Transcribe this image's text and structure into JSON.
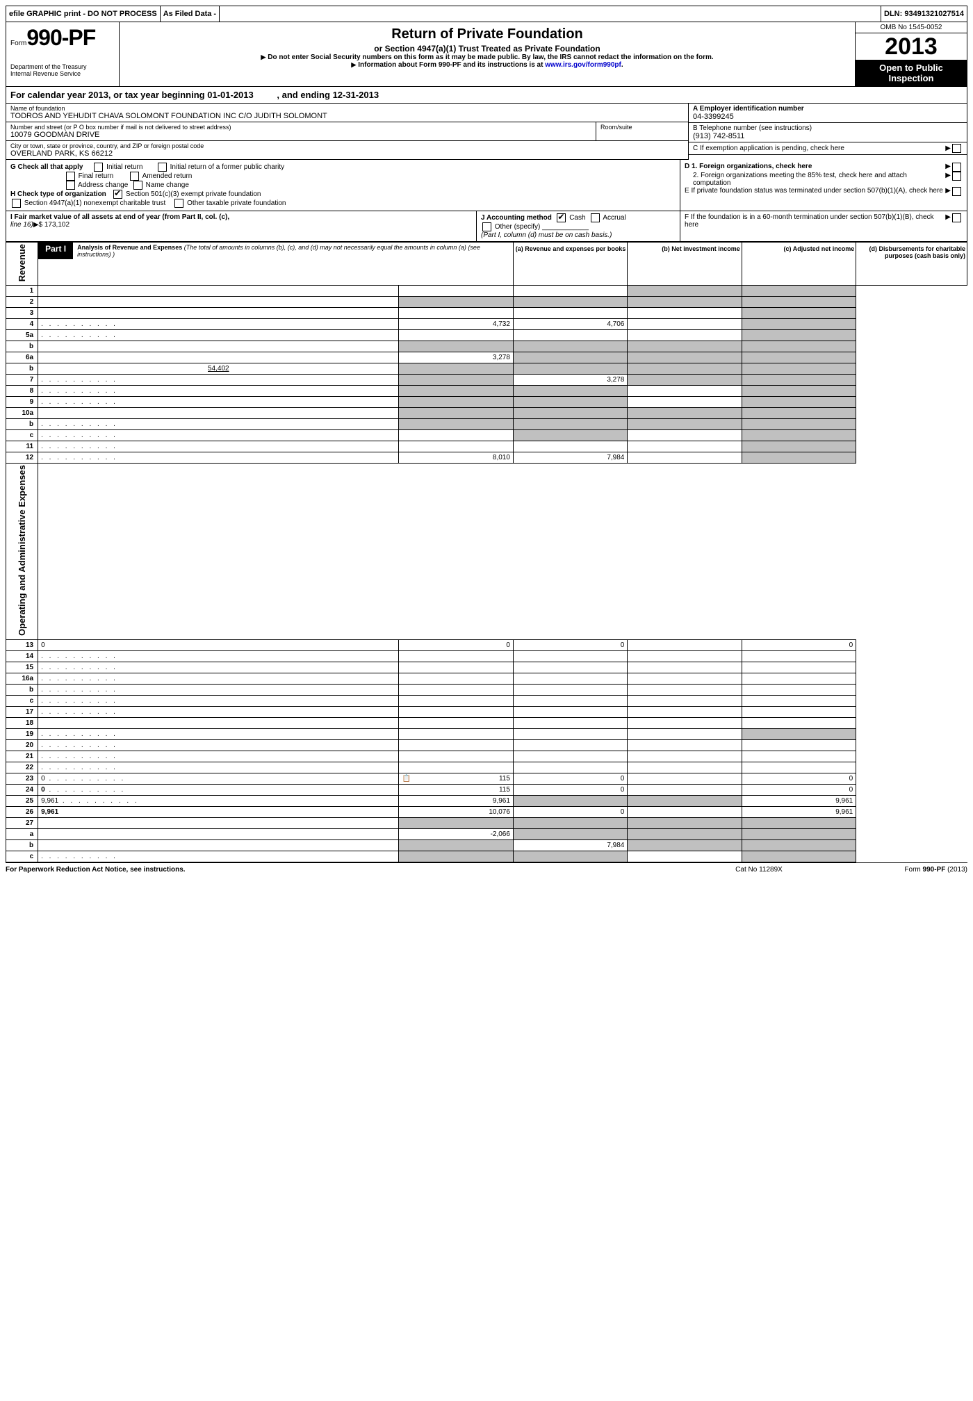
{
  "topbar": {
    "efile": "efile GRAPHIC print - DO NOT PROCESS",
    "asfiled": "As Filed Data -",
    "dln_label": "DLN:",
    "dln": "93491321027514"
  },
  "header": {
    "form_prefix": "Form",
    "form_num": "990-PF",
    "dept1": "Department of the Treasury",
    "dept2": "Internal Revenue Service",
    "title": "Return of Private Foundation",
    "subtitle": "or Section 4947(a)(1) Trust Treated as Private Foundation",
    "note1": "Do not enter Social Security numbers on this form as it may be made public. By law, the IRS cannot redact the information on the form.",
    "note2": "Information about Form 990-PF and its instructions is at",
    "link": "www.irs.gov/form990pf",
    "omb": "OMB No 1545-0052",
    "year": "2013",
    "open": "Open to Public Inspection"
  },
  "calendar": {
    "text": "For calendar year 2013, or tax year beginning",
    "begin": "01-01-2013",
    "mid": ", and ending",
    "end": "12-31-2013"
  },
  "entity": {
    "name_label": "Name of foundation",
    "name": "TODROS AND YEHUDIT CHAVA SOLOMONT FOUNDATION INC C/O JUDITH SOLOMONT",
    "addr_label": "Number and street (or P O  box number if mail is not delivered to street address)",
    "room_label": "Room/suite",
    "addr": "10079 GOODMAN DRIVE",
    "city_label": "City or town, state or province, country, and ZIP or foreign postal code",
    "city": "OVERLAND PARK, KS  66212",
    "a_label": "A Employer identification number",
    "ein": "04-3399245",
    "b_label": "B Telephone number (see instructions)",
    "phone": "(913) 742-8511",
    "c_label": "C  If exemption application is pending, check here"
  },
  "checks": {
    "g": "G Check all that apply",
    "g1": "Initial return",
    "g2": "Initial return of a former public charity",
    "g3": "Final return",
    "g4": "Amended return",
    "g5": "Address change",
    "g6": "Name change",
    "h": "H Check type of organization",
    "h1": "Section 501(c)(3) exempt private foundation",
    "h2": "Section 4947(a)(1) nonexempt charitable trust",
    "h3": "Other taxable private foundation",
    "d1": "D 1. Foreign organizations, check here",
    "d2": "2. Foreign organizations meeting the 85% test, check here and attach computation",
    "e": "E  If private foundation status was terminated under section 507(b)(1)(A), check here",
    "f": "F  If the foundation is in a 60-month termination under section 507(b)(1)(B), check here",
    "i": "I Fair market value of all assets at end of year (from Part II, col. (c),",
    "i_line": "line 16)",
    "i_val": "$  173,102",
    "j": "J Accounting method",
    "j1": "Cash",
    "j2": "Accrual",
    "j3": "Other (specify)",
    "j_note": "(Part I, column (d) must be on cash basis.)"
  },
  "part1": {
    "label": "Part I",
    "title": "Analysis of Revenue and Expenses",
    "title_note": "(The total of amounts in columns (b), (c), and (d) may not necessarily equal the amounts in column (a) (see instructions) )",
    "col_a": "(a) Revenue and expenses per books",
    "col_b": "(b) Net investment income",
    "col_c": "(c) Adjusted net income",
    "col_d": "(d) Disbursements for charitable purposes (cash basis only)"
  },
  "side": {
    "revenue": "Revenue",
    "expenses": "Operating and Administrative Expenses"
  },
  "rows": [
    {
      "n": "1",
      "d": "",
      "a": "",
      "b": "",
      "c": "",
      "grey_c": true,
      "grey_d": true
    },
    {
      "n": "2",
      "d": "",
      "a": "",
      "b": "",
      "c": "",
      "grey_a": true,
      "grey_b": true,
      "grey_c": true,
      "grey_d": true
    },
    {
      "n": "3",
      "d": "",
      "a": "",
      "b": "",
      "c": "",
      "grey_d": true
    },
    {
      "n": "4",
      "d": "",
      "a": "4,732",
      "b": "4,706",
      "c": "",
      "grey_d": true,
      "dots": true
    },
    {
      "n": "5a",
      "d": "",
      "a": "",
      "b": "",
      "c": "",
      "grey_d": true,
      "dots": true
    },
    {
      "n": "b",
      "d": "",
      "a": "",
      "b": "",
      "c": "",
      "grey_a": true,
      "grey_b": true,
      "grey_c": true,
      "grey_d": true
    },
    {
      "n": "6a",
      "d": "",
      "a": "3,278",
      "b": "",
      "c": "",
      "grey_b": true,
      "grey_c": true,
      "grey_d": true
    },
    {
      "n": "b",
      "d": "",
      "sub": "54,402",
      "a": "",
      "b": "",
      "c": "",
      "grey_a": true,
      "grey_b": true,
      "grey_c": true,
      "grey_d": true
    },
    {
      "n": "7",
      "d": "",
      "a": "",
      "b": "3,278",
      "c": "",
      "grey_a": true,
      "grey_c": true,
      "grey_d": true,
      "dots": true
    },
    {
      "n": "8",
      "d": "",
      "a": "",
      "b": "",
      "c": "",
      "grey_a": true,
      "grey_b": true,
      "grey_d": true,
      "dots": true
    },
    {
      "n": "9",
      "d": "",
      "a": "",
      "b": "",
      "c": "",
      "grey_a": true,
      "grey_b": true,
      "grey_d": true,
      "dots": true
    },
    {
      "n": "10a",
      "d": "",
      "a": "",
      "b": "",
      "c": "",
      "grey_a": true,
      "grey_b": true,
      "grey_c": true,
      "grey_d": true
    },
    {
      "n": "b",
      "d": "",
      "a": "",
      "b": "",
      "c": "",
      "grey_a": true,
      "grey_b": true,
      "grey_c": true,
      "grey_d": true,
      "dots": true
    },
    {
      "n": "c",
      "d": "",
      "a": "",
      "b": "",
      "c": "",
      "grey_b": true,
      "grey_d": true,
      "dots": true
    },
    {
      "n": "11",
      "d": "",
      "a": "",
      "b": "",
      "c": "",
      "grey_d": true,
      "dots": true
    },
    {
      "n": "12",
      "d": "",
      "a": "8,010",
      "b": "7,984",
      "c": "",
      "grey_d": true,
      "bold": true,
      "dots": true
    }
  ],
  "exp_rows": [
    {
      "n": "13",
      "d": "0",
      "a": "0",
      "b": "0",
      "c": ""
    },
    {
      "n": "14",
      "d": "",
      "a": "",
      "b": "",
      "c": "",
      "dots": true
    },
    {
      "n": "15",
      "d": "",
      "a": "",
      "b": "",
      "c": "",
      "dots": true
    },
    {
      "n": "16a",
      "d": "",
      "a": "",
      "b": "",
      "c": "",
      "dots": true
    },
    {
      "n": "b",
      "d": "",
      "a": "",
      "b": "",
      "c": "",
      "dots": true
    },
    {
      "n": "c",
      "d": "",
      "a": "",
      "b": "",
      "c": "",
      "dots": true
    },
    {
      "n": "17",
      "d": "",
      "a": "",
      "b": "",
      "c": "",
      "dots": true
    },
    {
      "n": "18",
      "d": "",
      "a": "",
      "b": "",
      "c": ""
    },
    {
      "n": "19",
      "d": "",
      "a": "",
      "b": "",
      "c": "",
      "grey_d": true,
      "dots": true
    },
    {
      "n": "20",
      "d": "",
      "a": "",
      "b": "",
      "c": "",
      "dots": true
    },
    {
      "n": "21",
      "d": "",
      "a": "",
      "b": "",
      "c": "",
      "dots": true
    },
    {
      "n": "22",
      "d": "",
      "a": "",
      "b": "",
      "c": "",
      "dots": true
    },
    {
      "n": "23",
      "d": "0",
      "a": "115",
      "b": "0",
      "c": "",
      "icon": true,
      "dots": true
    },
    {
      "n": "24",
      "d": "0",
      "a": "115",
      "b": "0",
      "c": "",
      "bold": true,
      "dots": true
    },
    {
      "n": "25",
      "d": "9,961",
      "a": "9,961",
      "b": "",
      "c": "",
      "grey_b": true,
      "grey_c": true,
      "dots": true
    },
    {
      "n": "26",
      "d": "9,961",
      "a": "10,076",
      "b": "0",
      "c": "",
      "bold": true
    }
  ],
  "net_rows": [
    {
      "n": "27",
      "d": "",
      "a": "",
      "b": "",
      "c": "",
      "grey_a": true,
      "grey_b": true,
      "grey_c": true,
      "grey_d": true
    },
    {
      "n": "a",
      "d": "",
      "a": "-2,066",
      "b": "",
      "c": "",
      "grey_b": true,
      "grey_c": true,
      "grey_d": true,
      "bold": true
    },
    {
      "n": "b",
      "d": "",
      "a": "",
      "b": "7,984",
      "c": "",
      "grey_a": true,
      "grey_c": true,
      "grey_d": true,
      "bold": true
    },
    {
      "n": "c",
      "d": "",
      "a": "",
      "b": "",
      "c": "",
      "grey_a": true,
      "grey_b": true,
      "grey_d": true,
      "bold": true,
      "dots": true
    }
  ],
  "footer": {
    "left": "For Paperwork Reduction Act Notice, see instructions.",
    "mid": "Cat No  11289X",
    "right_pre": "Form ",
    "right_form": "990-PF",
    "right_suf": " (2013)"
  }
}
